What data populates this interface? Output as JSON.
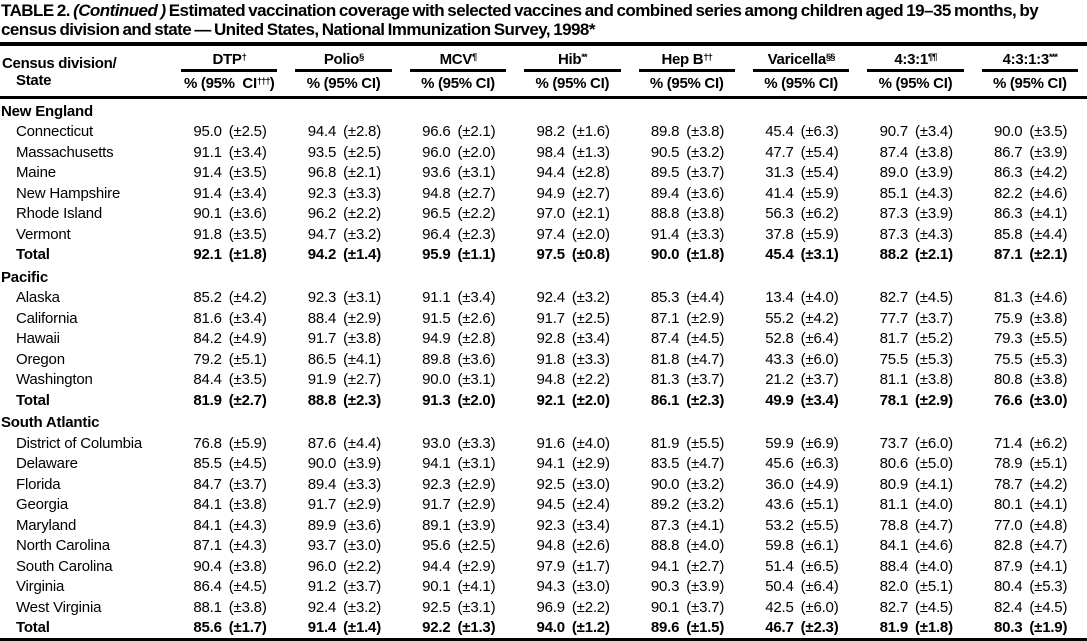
{
  "title": {
    "label": "TABLE 2.",
    "continued": "(Continued )",
    "text": "Estimated vaccination coverage with selected vaccines and combined series among children aged 19–35 months, by census division and state — United States, National Immunization Survey, 1998*"
  },
  "table": {
    "row_header": {
      "line1": "Census division/",
      "line2": "State"
    },
    "columns": [
      {
        "name": "DTP",
        "sup": "†",
        "sub_pre": "% (95%  CI",
        "sub_sup": "†††",
        "sub_post": ")"
      },
      {
        "name": "Polio",
        "sup": "§",
        "sub_pre": "% (95% CI",
        "sub_sup": "",
        "sub_post": ")"
      },
      {
        "name": "MCV",
        "sup": "¶",
        "sub_pre": "% (95% CI",
        "sub_sup": "",
        "sub_post": ")"
      },
      {
        "name": "Hib",
        "sup": "**",
        "sub_pre": "% (95% CI",
        "sub_sup": "",
        "sub_post": ")"
      },
      {
        "name": "Hep B",
        "sup": "††",
        "sub_pre": "% (95% CI",
        "sub_sup": "",
        "sub_post": ")"
      },
      {
        "name": "Varicella",
        "sup": "§§",
        "sub_pre": "% (95% CI",
        "sub_sup": "",
        "sub_post": ")"
      },
      {
        "name": "4:3:1",
        "sup": "¶¶",
        "sub_pre": "% (95% CI",
        "sub_sup": "",
        "sub_post": ")"
      },
      {
        "name": "4:3:1:3",
        "sup": "***",
        "sub_pre": "% (95% CI",
        "sub_sup": "",
        "sub_post": ")"
      }
    ],
    "sections": [
      {
        "name": "New England",
        "rows": [
          {
            "state": "Connecticut",
            "bold": false,
            "cells": [
              [
                "95.0",
                "(±2.5)"
              ],
              [
                "94.4",
                "(±2.8)"
              ],
              [
                "96.6",
                "(±2.1)"
              ],
              [
                "98.2",
                "(±1.6)"
              ],
              [
                "89.8",
                "(±3.8)"
              ],
              [
                "45.4",
                "(±6.3)"
              ],
              [
                "90.7",
                "(±3.4)"
              ],
              [
                "90.0",
                "(±3.5)"
              ]
            ]
          },
          {
            "state": "Massachusetts",
            "bold": false,
            "cells": [
              [
                "91.1",
                "(±3.4)"
              ],
              [
                "93.5",
                "(±2.5)"
              ],
              [
                "96.0",
                "(±2.0)"
              ],
              [
                "98.4",
                "(±1.3)"
              ],
              [
                "90.5",
                "(±3.2)"
              ],
              [
                "47.7",
                "(±5.4)"
              ],
              [
                "87.4",
                "(±3.8)"
              ],
              [
                "86.7",
                "(±3.9)"
              ]
            ]
          },
          {
            "state": "Maine",
            "bold": false,
            "cells": [
              [
                "91.4",
                "(±3.5)"
              ],
              [
                "96.8",
                "(±2.1)"
              ],
              [
                "93.6",
                "(±3.1)"
              ],
              [
                "94.4",
                "(±2.8)"
              ],
              [
                "89.5",
                "(±3.7)"
              ],
              [
                "31.3",
                "(±5.4)"
              ],
              [
                "89.0",
                "(±3.9)"
              ],
              [
                "86.3",
                "(±4.2)"
              ]
            ]
          },
          {
            "state": "New Hampshire",
            "bold": false,
            "cells": [
              [
                "91.4",
                "(±3.4)"
              ],
              [
                "92.3",
                "(±3.3)"
              ],
              [
                "94.8",
                "(±2.7)"
              ],
              [
                "94.9",
                "(±2.7)"
              ],
              [
                "89.4",
                "(±3.6)"
              ],
              [
                "41.4",
                "(±5.9)"
              ],
              [
                "85.1",
                "(±4.3)"
              ],
              [
                "82.2",
                "(±4.6)"
              ]
            ]
          },
          {
            "state": "Rhode Island",
            "bold": false,
            "cells": [
              [
                "90.1",
                "(±3.6)"
              ],
              [
                "96.2",
                "(±2.2)"
              ],
              [
                "96.5",
                "(±2.2)"
              ],
              [
                "97.0",
                "(±2.1)"
              ],
              [
                "88.8",
                "(±3.8)"
              ],
              [
                "56.3",
                "(±6.2)"
              ],
              [
                "87.3",
                "(±3.9)"
              ],
              [
                "86.3",
                "(±4.1)"
              ]
            ]
          },
          {
            "state": "Vermont",
            "bold": false,
            "cells": [
              [
                "91.8",
                "(±3.5)"
              ],
              [
                "94.7",
                "(±3.2)"
              ],
              [
                "96.4",
                "(±2.3)"
              ],
              [
                "97.4",
                "(±2.0)"
              ],
              [
                "91.4",
                "(±3.3)"
              ],
              [
                "37.8",
                "(±5.9)"
              ],
              [
                "87.3",
                "(±4.3)"
              ],
              [
                "85.8",
                "(±4.4)"
              ]
            ]
          },
          {
            "state": "Total",
            "bold": true,
            "cells": [
              [
                "92.1",
                "(±1.8)"
              ],
              [
                "94.2",
                "(±1.4)"
              ],
              [
                "95.9",
                "(±1.1)"
              ],
              [
                "97.5",
                "(±0.8)"
              ],
              [
                "90.0",
                "(±1.8)"
              ],
              [
                "45.4",
                "(±3.1)"
              ],
              [
                "88.2",
                "(±2.1)"
              ],
              [
                "87.1",
                "(±2.1)"
              ]
            ]
          }
        ]
      },
      {
        "name": "Pacific",
        "rows": [
          {
            "state": "Alaska",
            "bold": false,
            "cells": [
              [
                "85.2",
                "(±4.2)"
              ],
              [
                "92.3",
                "(±3.1)"
              ],
              [
                "91.1",
                "(±3.4)"
              ],
              [
                "92.4",
                "(±3.2)"
              ],
              [
                "85.3",
                "(±4.4)"
              ],
              [
                "13.4",
                "(±4.0)"
              ],
              [
                "82.7",
                "(±4.5)"
              ],
              [
                "81.3",
                "(±4.6)"
              ]
            ]
          },
          {
            "state": "California",
            "bold": false,
            "cells": [
              [
                "81.6",
                "(±3.4)"
              ],
              [
                "88.4",
                "(±2.9)"
              ],
              [
                "91.5",
                "(±2.6)"
              ],
              [
                "91.7",
                "(±2.5)"
              ],
              [
                "87.1",
                "(±2.9)"
              ],
              [
                "55.2",
                "(±4.2)"
              ],
              [
                "77.7",
                "(±3.7)"
              ],
              [
                "75.9",
                "(±3.8)"
              ]
            ]
          },
          {
            "state": "Hawaii",
            "bold": false,
            "cells": [
              [
                "84.2",
                "(±4.9)"
              ],
              [
                "91.7",
                "(±3.8)"
              ],
              [
                "94.9",
                "(±2.8)"
              ],
              [
                "92.8",
                "(±3.4)"
              ],
              [
                "87.4",
                "(±4.5)"
              ],
              [
                "52.8",
                "(±6.4)"
              ],
              [
                "81.7",
                "(±5.2)"
              ],
              [
                "79.3",
                "(±5.5)"
              ]
            ]
          },
          {
            "state": "Oregon",
            "bold": false,
            "cells": [
              [
                "79.2",
                "(±5.1)"
              ],
              [
                "86.5",
                "(±4.1)"
              ],
              [
                "89.8",
                "(±3.6)"
              ],
              [
                "91.8",
                "(±3.3)"
              ],
              [
                "81.8",
                "(±4.7)"
              ],
              [
                "43.3",
                "(±6.0)"
              ],
              [
                "75.5",
                "(±5.3)"
              ],
              [
                "75.5",
                "(±5.3)"
              ]
            ]
          },
          {
            "state": "Washington",
            "bold": false,
            "cells": [
              [
                "84.4",
                "(±3.5)"
              ],
              [
                "91.9",
                "(±2.7)"
              ],
              [
                "90.0",
                "(±3.1)"
              ],
              [
                "94.8",
                "(±2.2)"
              ],
              [
                "81.3",
                "(±3.7)"
              ],
              [
                "21.2",
                "(±3.7)"
              ],
              [
                "81.1",
                "(±3.8)"
              ],
              [
                "80.8",
                "(±3.8)"
              ]
            ]
          },
          {
            "state": "Total",
            "bold": true,
            "cells": [
              [
                "81.9",
                "(±2.7)"
              ],
              [
                "88.8",
                "(±2.3)"
              ],
              [
                "91.3",
                "(±2.0)"
              ],
              [
                "92.1",
                "(±2.0)"
              ],
              [
                "86.1",
                "(±2.3)"
              ],
              [
                "49.9",
                "(±3.4)"
              ],
              [
                "78.1",
                "(±2.9)"
              ],
              [
                "76.6",
                "(±3.0)"
              ]
            ]
          }
        ]
      },
      {
        "name": "South Atlantic",
        "rows": [
          {
            "state": "District of Columbia",
            "bold": false,
            "cells": [
              [
                "76.8",
                "(±5.9)"
              ],
              [
                "87.6",
                "(±4.4)"
              ],
              [
                "93.0",
                "(±3.3)"
              ],
              [
                "91.6",
                "(±4.0)"
              ],
              [
                "81.9",
                "(±5.5)"
              ],
              [
                "59.9",
                "(±6.9)"
              ],
              [
                "73.7",
                "(±6.0)"
              ],
              [
                "71.4",
                "(±6.2)"
              ]
            ]
          },
          {
            "state": "Delaware",
            "bold": false,
            "cells": [
              [
                "85.5",
                "(±4.5)"
              ],
              [
                "90.0",
                "(±3.9)"
              ],
              [
                "94.1",
                "(±3.1)"
              ],
              [
                "94.1",
                "(±2.9)"
              ],
              [
                "83.5",
                "(±4.7)"
              ],
              [
                "45.6",
                "(±6.3)"
              ],
              [
                "80.6",
                "(±5.0)"
              ],
              [
                "78.9",
                "(±5.1)"
              ]
            ]
          },
          {
            "state": "Florida",
            "bold": false,
            "cells": [
              [
                "84.7",
                "(±3.7)"
              ],
              [
                "89.4",
                "(±3.3)"
              ],
              [
                "92.3",
                "(±2.9)"
              ],
              [
                "92.5",
                "(±3.0)"
              ],
              [
                "90.0",
                "(±3.2)"
              ],
              [
                "36.0",
                "(±4.9)"
              ],
              [
                "80.9",
                "(±4.1)"
              ],
              [
                "78.7",
                "(±4.2)"
              ]
            ]
          },
          {
            "state": "Georgia",
            "bold": false,
            "cells": [
              [
                "84.1",
                "(±3.8)"
              ],
              [
                "91.7",
                "(±2.9)"
              ],
              [
                "91.7",
                "(±2.9)"
              ],
              [
                "94.5",
                "(±2.4)"
              ],
              [
                "89.2",
                "(±3.2)"
              ],
              [
                "43.6",
                "(±5.1)"
              ],
              [
                "81.1",
                "(±4.0)"
              ],
              [
                "80.1",
                "(±4.1)"
              ]
            ]
          },
          {
            "state": "Maryland",
            "bold": false,
            "cells": [
              [
                "84.1",
                "(±4.3)"
              ],
              [
                "89.9",
                "(±3.6)"
              ],
              [
                "89.1",
                "(±3.9)"
              ],
              [
                "92.3",
                "(±3.4)"
              ],
              [
                "87.3",
                "(±4.1)"
              ],
              [
                "53.2",
                "(±5.5)"
              ],
              [
                "78.8",
                "(±4.7)"
              ],
              [
                "77.0",
                "(±4.8)"
              ]
            ]
          },
          {
            "state": "North Carolina",
            "bold": false,
            "cells": [
              [
                "87.1",
                "(±4.3)"
              ],
              [
                "93.7",
                "(±3.0)"
              ],
              [
                "95.6",
                "(±2.5)"
              ],
              [
                "94.8",
                "(±2.6)"
              ],
              [
                "88.8",
                "(±4.0)"
              ],
              [
                "59.8",
                "(±6.1)"
              ],
              [
                "84.1",
                "(±4.6)"
              ],
              [
                "82.8",
                "(±4.7)"
              ]
            ]
          },
          {
            "state": "South Carolina",
            "bold": false,
            "cells": [
              [
                "90.4",
                "(±3.8)"
              ],
              [
                "96.0",
                "(±2.2)"
              ],
              [
                "94.4",
                "(±2.9)"
              ],
              [
                "97.9",
                "(±1.7)"
              ],
              [
                "94.1",
                "(±2.7)"
              ],
              [
                "51.4",
                "(±6.5)"
              ],
              [
                "88.4",
                "(±4.0)"
              ],
              [
                "87.9",
                "(±4.1)"
              ]
            ]
          },
          {
            "state": "Virginia",
            "bold": false,
            "cells": [
              [
                "86.4",
                "(±4.5)"
              ],
              [
                "91.2",
                "(±3.7)"
              ],
              [
                "90.1",
                "(±4.1)"
              ],
              [
                "94.3",
                "(±3.0)"
              ],
              [
                "90.3",
                "(±3.9)"
              ],
              [
                "50.4",
                "(±6.4)"
              ],
              [
                "82.0",
                "(±5.1)"
              ],
              [
                "80.4",
                "(±5.3)"
              ]
            ]
          },
          {
            "state": "West Virginia",
            "bold": false,
            "cells": [
              [
                "88.1",
                "(±3.8)"
              ],
              [
                "92.4",
                "(±3.2)"
              ],
              [
                "92.5",
                "(±3.1)"
              ],
              [
                "96.9",
                "(±2.2)"
              ],
              [
                "90.1",
                "(±3.7)"
              ],
              [
                "42.5",
                "(±6.0)"
              ],
              [
                "82.7",
                "(±4.5)"
              ],
              [
                "82.4",
                "(±4.5)"
              ]
            ]
          },
          {
            "state": "Total",
            "bold": true,
            "cells": [
              [
                "85.6",
                "(±1.7)"
              ],
              [
                "91.4",
                "(±1.4)"
              ],
              [
                "92.2",
                "(±1.3)"
              ],
              [
                "94.0",
                "(±1.2)"
              ],
              [
                "89.6",
                "(±1.5)"
              ],
              [
                "46.7",
                "(±2.3)"
              ],
              [
                "81.9",
                "(±1.8)"
              ],
              [
                "80.3",
                "(±1.9)"
              ]
            ]
          }
        ]
      }
    ]
  }
}
